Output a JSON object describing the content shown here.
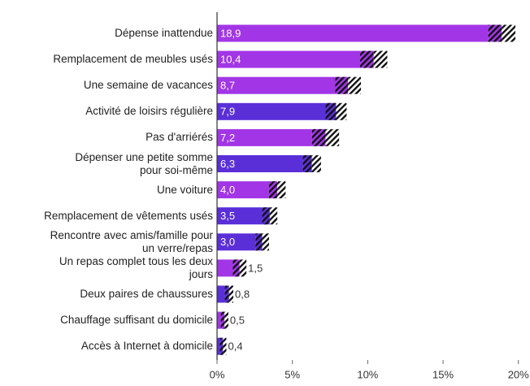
{
  "chart_data": {
    "type": "bar",
    "orientation": "horizontal",
    "categories": [
      "Dépense inattendue",
      "Remplacement de meubles usés",
      "Une semaine de vacances",
      "Activité de loisirs régulière",
      "Pas d'arriérés",
      "Dépenser une petite somme\npour soi-même",
      "Une voiture",
      "Remplacement de vêtements usés",
      "Rencontre avec amis/famille pour\nun verre/repas",
      "Un repas complet tous les deux\njours",
      "Deux paires de chaussures",
      "Chauffage suffisant du domicile",
      "Accès à Internet à domicile"
    ],
    "values": [
      18.9,
      10.4,
      8.7,
      7.9,
      7.2,
      6.3,
      4.0,
      3.5,
      3.0,
      1.5,
      0.8,
      0.5,
      0.4
    ],
    "value_labels": [
      "18,9",
      "10,4",
      "8,7",
      "7,9",
      "7,2",
      "6,3",
      "4,0",
      "3,5",
      "3,0",
      "1,5",
      "0,8",
      "0,5",
      "0,4"
    ],
    "errors": [
      0.9,
      0.9,
      0.85,
      0.7,
      0.9,
      0.6,
      0.55,
      0.5,
      0.45,
      0.45,
      0.28,
      0.25,
      0.22
    ],
    "colors": [
      "#a236e6",
      "#a236e6",
      "#a236e6",
      "#5a2fd8",
      "#a236e6",
      "#5a2fd8",
      "#a236e6",
      "#5a2fd8",
      "#5a2fd8",
      "#a236e6",
      "#5a2fd8",
      "#a236e6",
      "#5a2fd8"
    ],
    "xlim": [
      0,
      20.5
    ],
    "xticks": [
      {
        "value": 0,
        "label": "0%"
      },
      {
        "value": 5,
        "label": "5%"
      },
      {
        "value": 10,
        "label": "10%"
      },
      {
        "value": 15,
        "label": "15%"
      },
      {
        "value": 20,
        "label": "20%"
      }
    ]
  }
}
